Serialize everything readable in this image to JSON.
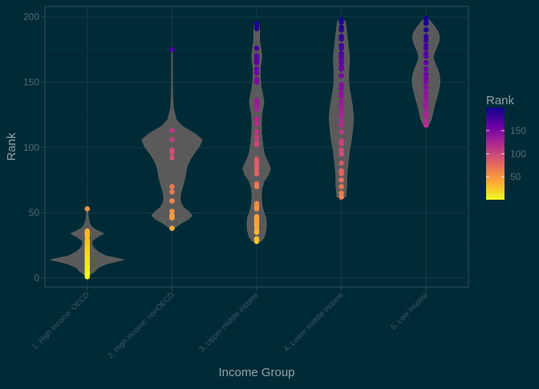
{
  "chart_data": {
    "type": "violin",
    "title": "",
    "xlabel": "Income Group",
    "ylabel": "Rank",
    "ylim": [
      -7,
      208
    ],
    "yticks": [
      0,
      50,
      100,
      150,
      200
    ],
    "grid": true,
    "legend": {
      "title": "Rank",
      "placement": "right",
      "ticks": [
        50,
        100,
        150
      ],
      "range": [
        1,
        200
      ],
      "colors": [
        "#f0f921",
        "#fca636",
        "#e16462",
        "#b12a90",
        "#6a00a8",
        "#0d0887"
      ]
    },
    "categories": [
      "1. High income: OECD",
      "2. High income: nonOECD",
      "3. Upper middle income",
      "4. Lower middle income",
      "5. Low income"
    ],
    "violins": [
      {
        "category": "1. High income: OECD",
        "density": [
          [
            2,
            0.05
          ],
          [
            5,
            0.2
          ],
          [
            8,
            0.3
          ],
          [
            11,
            0.55
          ],
          [
            14,
            1.0
          ],
          [
            17,
            0.5
          ],
          [
            20,
            0.3
          ],
          [
            23,
            0.18
          ],
          [
            26,
            0.12
          ],
          [
            29,
            0.15
          ],
          [
            32,
            0.32
          ],
          [
            34,
            0.45
          ],
          [
            36,
            0.3
          ],
          [
            39,
            0.12
          ],
          [
            43,
            0.05
          ],
          [
            47,
            0.03
          ],
          [
            51,
            0.02
          ],
          [
            53,
            0.01
          ]
        ],
        "points": [
          53,
          36,
          35,
          34,
          33,
          32,
          29,
          29,
          27,
          26,
          24,
          23,
          22,
          21,
          20,
          19,
          18,
          17,
          16,
          15,
          14,
          13,
          12,
          11,
          10,
          9,
          8,
          7,
          6,
          5,
          4,
          3,
          2,
          1
        ]
      },
      {
        "category": "2. High income: nonOECD",
        "density": [
          [
            38,
            0.06
          ],
          [
            42,
            0.25
          ],
          [
            45,
            0.45
          ],
          [
            48,
            0.55
          ],
          [
            51,
            0.45
          ],
          [
            54,
            0.32
          ],
          [
            57,
            0.25
          ],
          [
            61,
            0.22
          ],
          [
            66,
            0.25
          ],
          [
            71,
            0.3
          ],
          [
            76,
            0.35
          ],
          [
            81,
            0.38
          ],
          [
            86,
            0.42
          ],
          [
            91,
            0.5
          ],
          [
            96,
            0.62
          ],
          [
            101,
            0.75
          ],
          [
            106,
            0.82
          ],
          [
            111,
            0.6
          ],
          [
            116,
            0.3
          ],
          [
            121,
            0.12
          ],
          [
            130,
            0.04
          ],
          [
            140,
            0.02
          ],
          [
            150,
            0.015
          ],
          [
            160,
            0.012
          ],
          [
            170,
            0.01
          ],
          [
            175,
            0.01
          ]
        ],
        "points": [
          175,
          113,
          106,
          98,
          96,
          92,
          70,
          66,
          59,
          51,
          48,
          47,
          46,
          38
        ]
      },
      {
        "category": "3. Upper middle income",
        "density": [
          [
            28,
            0.12
          ],
          [
            31,
            0.2
          ],
          [
            36,
            0.25
          ],
          [
            41,
            0.27
          ],
          [
            46,
            0.25
          ],
          [
            50,
            0.2
          ],
          [
            54,
            0.16
          ],
          [
            58,
            0.14
          ],
          [
            63,
            0.13
          ],
          [
            68,
            0.14
          ],
          [
            74,
            0.2
          ],
          [
            79,
            0.32
          ],
          [
            84,
            0.38
          ],
          [
            89,
            0.3
          ],
          [
            94,
            0.22
          ],
          [
            99,
            0.18
          ],
          [
            104,
            0.16
          ],
          [
            110,
            0.14
          ],
          [
            115,
            0.13
          ],
          [
            120,
            0.13
          ],
          [
            125,
            0.14
          ],
          [
            130,
            0.17
          ],
          [
            135,
            0.2
          ],
          [
            140,
            0.17
          ],
          [
            145,
            0.13
          ],
          [
            150,
            0.11
          ],
          [
            155,
            0.1
          ],
          [
            160,
            0.1
          ],
          [
            165,
            0.12
          ],
          [
            170,
            0.14
          ],
          [
            175,
            0.12
          ],
          [
            180,
            0.09
          ],
          [
            185,
            0.08
          ],
          [
            190,
            0.08
          ],
          [
            195,
            0.06
          ]
        ],
        "points": [
          195,
          193,
          191,
          176,
          170,
          167,
          165,
          160,
          157,
          152,
          150,
          136,
          133,
          131,
          129,
          122,
          118,
          112,
          108,
          104,
          102,
          91,
          89,
          87,
          85,
          83,
          80,
          72,
          70,
          57,
          55,
          53,
          47,
          45,
          44,
          42,
          40,
          37,
          35,
          30,
          29,
          28
        ]
      },
      {
        "category": "4. Lower middle income",
        "density": [
          [
            62,
            0.12
          ],
          [
            67,
            0.14
          ],
          [
            72,
            0.15
          ],
          [
            77,
            0.15
          ],
          [
            82,
            0.16
          ],
          [
            87,
            0.18
          ],
          [
            92,
            0.2
          ],
          [
            97,
            0.22
          ],
          [
            102,
            0.25
          ],
          [
            107,
            0.28
          ],
          [
            112,
            0.3
          ],
          [
            117,
            0.32
          ],
          [
            122,
            0.33
          ],
          [
            127,
            0.32
          ],
          [
            132,
            0.3
          ],
          [
            137,
            0.27
          ],
          [
            142,
            0.24
          ],
          [
            147,
            0.21
          ],
          [
            152,
            0.2
          ],
          [
            157,
            0.2
          ],
          [
            162,
            0.21
          ],
          [
            167,
            0.22
          ],
          [
            172,
            0.21
          ],
          [
            177,
            0.19
          ],
          [
            182,
            0.17
          ],
          [
            187,
            0.15
          ],
          [
            192,
            0.13
          ],
          [
            197,
            0.1
          ]
        ],
        "points": [
          198,
          196,
          192,
          190,
          185,
          183,
          178,
          176,
          172,
          170,
          168,
          165,
          162,
          160,
          155,
          148,
          145,
          141,
          139,
          135,
          132,
          130,
          127,
          124,
          120,
          117,
          112,
          105,
          103,
          98,
          95,
          88,
          82,
          80,
          75,
          70,
          65,
          62
        ]
      },
      {
        "category": "5. Low income",
        "density": [
          [
            117,
            0.07
          ],
          [
            121,
            0.14
          ],
          [
            126,
            0.18
          ],
          [
            131,
            0.22
          ],
          [
            136,
            0.27
          ],
          [
            141,
            0.32
          ],
          [
            146,
            0.36
          ],
          [
            151,
            0.38
          ],
          [
            156,
            0.36
          ],
          [
            161,
            0.3
          ],
          [
            165,
            0.24
          ],
          [
            168,
            0.2
          ],
          [
            171,
            0.21
          ],
          [
            175,
            0.26
          ],
          [
            180,
            0.34
          ],
          [
            184,
            0.37
          ],
          [
            188,
            0.34
          ],
          [
            192,
            0.25
          ],
          [
            196,
            0.14
          ],
          [
            199,
            0.05
          ]
        ],
        "points": [
          199,
          197,
          195,
          190,
          185,
          182,
          178,
          176,
          172,
          170,
          165,
          160,
          156,
          153,
          150,
          146,
          142,
          139,
          136,
          133,
          130,
          126,
          124,
          120,
          117
        ]
      }
    ]
  }
}
